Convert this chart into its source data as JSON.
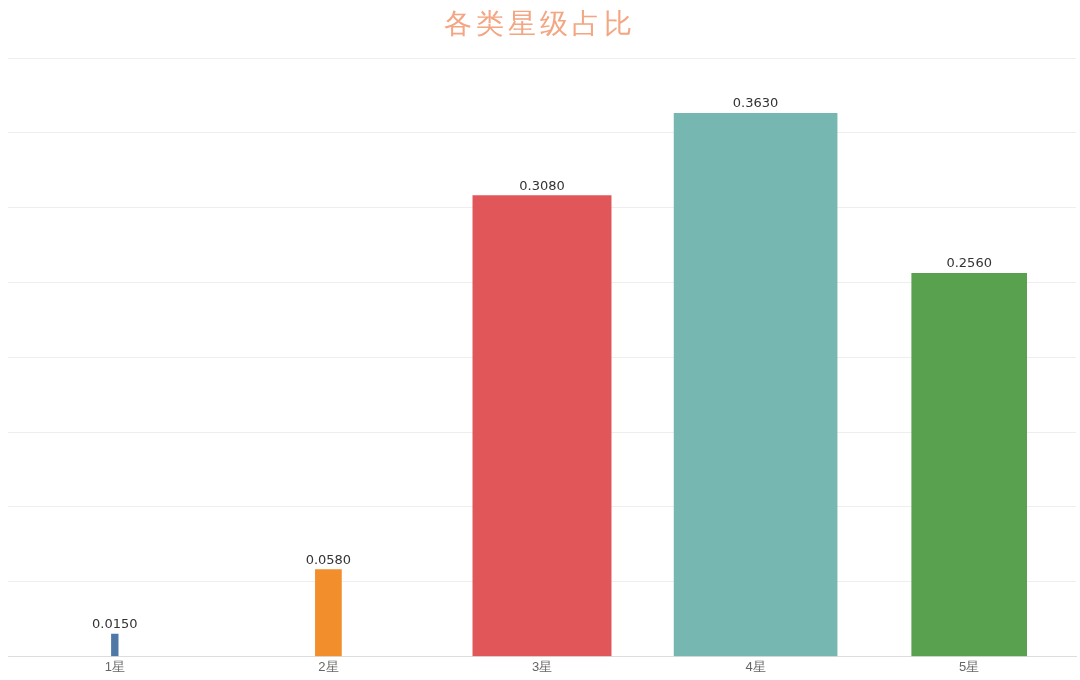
{
  "chart_data": {
    "type": "bar",
    "title": "各类星级占比",
    "categories": [
      "1星",
      "2星",
      "3星",
      "4星",
      "5星"
    ],
    "values": [
      0.015,
      0.058,
      0.308,
      0.363,
      0.256
    ],
    "colors": [
      "#4e79a7",
      "#f28e2b",
      "#e15759",
      "#76b7b2",
      "#59a14f"
    ],
    "value_labels": [
      "0.0150",
      "0.0580",
      "0.3080",
      "0.3630",
      "0.2560"
    ],
    "ylim": [
      0,
      0.4
    ],
    "yticks": [
      {
        "value": 0,
        "label": null
      },
      {
        "value": 0.05,
        "label": null
      },
      {
        "value": 0.1,
        "label": null
      },
      {
        "value": 0.15,
        "label": null
      },
      {
        "value": 0.2,
        "label": null
      },
      {
        "value": 0.25,
        "label": null
      },
      {
        "value": 0.3,
        "label": null
      },
      {
        "value": 0.35,
        "label": null
      },
      {
        "value": 0.4,
        "label": null
      }
    ],
    "grid": "y",
    "tick_labels": "x",
    "legend": false
  }
}
